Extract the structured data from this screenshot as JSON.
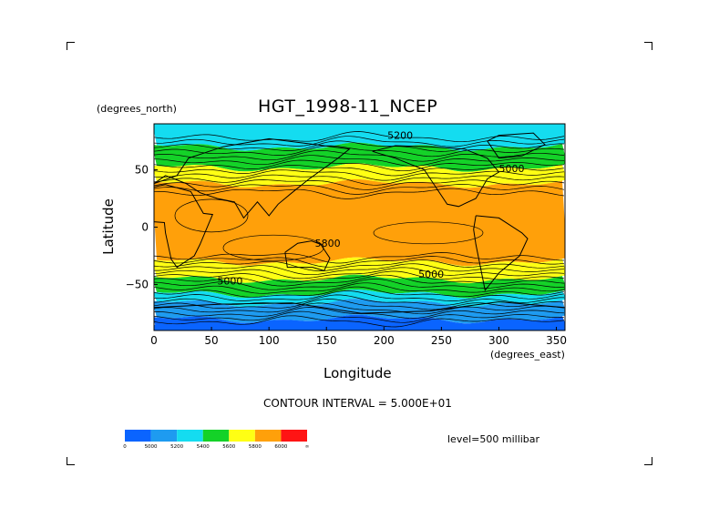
{
  "chart_data": {
    "type": "heatmap",
    "title": "HGT_1998-11_NCEP",
    "xlabel": "Longitude",
    "ylabel": "Latitude",
    "x_units": "(degrees_east)",
    "y_units": "(degrees_north)",
    "xlim": [
      0,
      357.5
    ],
    "ylim": [
      -90,
      90
    ],
    "x_ticks": [
      0,
      50,
      100,
      150,
      200,
      250,
      300,
      350
    ],
    "y_ticks": [
      50,
      0,
      -50
    ],
    "contour_interval_label": "CONTOUR INTERVAL = 5.000E+01",
    "level_label": "level=500 millibar",
    "contour_labels": [
      "5200",
      "5000",
      "5800",
      "5000",
      "5000"
    ],
    "colorbar": {
      "tick_labels": [
        "0",
        "5000",
        "5200",
        "5400",
        "5600",
        "5800",
        "6000",
        "∞"
      ],
      "colors": [
        "#0a64ff",
        "#1e9bf0",
        "#14dcf0",
        "#14d228",
        "#ffff14",
        "#ffa00a",
        "#ff1414"
      ]
    },
    "bands": [
      {
        "lat_from": 90,
        "lat_to": 70,
        "range": "5200-5400",
        "color": "#14dcf0"
      },
      {
        "lat_from": 70,
        "lat_to": 52,
        "range": "5400-5600",
        "color": "#14d228"
      },
      {
        "lat_from": 52,
        "lat_to": 38,
        "range": "5600-5800",
        "color": "#ffff14"
      },
      {
        "lat_from": 38,
        "lat_to": -30,
        "range": "5800-6000",
        "color": "#ffa00a"
      },
      {
        "lat_from": -30,
        "lat_to": -45,
        "range": "5600-5800",
        "color": "#ffff14"
      },
      {
        "lat_from": -45,
        "lat_to": -58,
        "range": "5400-5600",
        "color": "#14d228"
      },
      {
        "lat_from": -58,
        "lat_to": -66,
        "range": "5200-5400",
        "color": "#14dcf0"
      },
      {
        "lat_from": -66,
        "lat_to": -80,
        "range": "5000-5200",
        "color": "#1e9bf0"
      },
      {
        "lat_from": -80,
        "lat_to": -90,
        "range": "0-5000",
        "color": "#0a64ff"
      }
    ]
  }
}
